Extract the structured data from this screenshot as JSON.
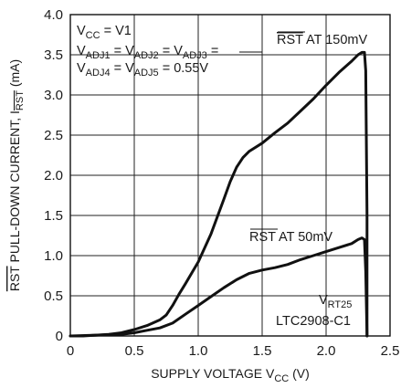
{
  "chart_data": {
    "type": "line",
    "xlabel": {
      "main": "SUPPLY VOLTAGE V",
      "sub": "CC",
      "unit": " (V)"
    },
    "ylabel": {
      "over": "RST",
      "main": " PULL-DOWN CURRENT, I",
      "sub": "RST",
      "unit": " (mA)"
    },
    "xlim": [
      0,
      2.5
    ],
    "ylim": [
      0,
      4.0
    ],
    "xticks": [
      "0",
      "0.5",
      "1.0",
      "1.5",
      "2.0",
      "2.5"
    ],
    "yticks": [
      "0",
      "0.5",
      "1.0",
      "1.5",
      "2.0",
      "2.5",
      "3.0",
      "3.5",
      "4.0"
    ],
    "grid": true,
    "annotations": {
      "cond_line1": {
        "a": "V",
        "a_sub": "CC",
        "b": " = V1"
      },
      "cond_line2": {
        "a": "V",
        "a_sub": "ADJ1",
        "b": " = V",
        "b_sub": "ADJ2",
        "c": " = V",
        "c_sub": "ADJ3",
        "d": " ="
      },
      "cond_line3": {
        "a": "V",
        "a_sub": "ADJ4",
        "b": " = V",
        "b_sub": "ADJ5",
        "c": " = 0.55V"
      },
      "curve_hi_label": {
        "over": "RST",
        "rest": " AT 150mV"
      },
      "curve_lo_label": {
        "over": "RST",
        "rest": " AT 50mV"
      },
      "part_line1": {
        "a": "V",
        "a_sub": "RT25"
      },
      "part_line2": "LTC2908-C1"
    },
    "series": [
      {
        "x": [
          0,
          0.1,
          0.2,
          0.3,
          0.4,
          0.5,
          0.6,
          0.7,
          0.75,
          0.8,
          0.85,
          0.9,
          1.0,
          1.1,
          1.2,
          1.25,
          1.3,
          1.35,
          1.4,
          1.5,
          1.6,
          1.7,
          1.8,
          1.9,
          2.0,
          2.1,
          2.2,
          2.25,
          2.28,
          2.3,
          2.31,
          2.32,
          2.32
        ],
        "y": [
          0,
          0,
          0.01,
          0.02,
          0.04,
          0.08,
          0.13,
          0.2,
          0.26,
          0.38,
          0.52,
          0.65,
          0.92,
          1.27,
          1.7,
          1.92,
          2.1,
          2.22,
          2.3,
          2.4,
          2.53,
          2.65,
          2.8,
          2.95,
          3.12,
          3.28,
          3.42,
          3.5,
          3.53,
          3.53,
          3.3,
          1.5,
          0
        ]
      },
      {
        "x": [
          0,
          0.2,
          0.4,
          0.5,
          0.6,
          0.7,
          0.8,
          0.9,
          1.0,
          1.1,
          1.2,
          1.3,
          1.4,
          1.5,
          1.6,
          1.7,
          1.8,
          1.9,
          2.0,
          2.1,
          2.2,
          2.25,
          2.28,
          2.3,
          2.31,
          2.32
        ],
        "y": [
          0,
          0.01,
          0.02,
          0.04,
          0.07,
          0.1,
          0.16,
          0.27,
          0.38,
          0.49,
          0.6,
          0.7,
          0.78,
          0.82,
          0.85,
          0.89,
          0.95,
          1.0,
          1.05,
          1.1,
          1.15,
          1.2,
          1.22,
          1.2,
          0.8,
          0
        ]
      }
    ]
  }
}
